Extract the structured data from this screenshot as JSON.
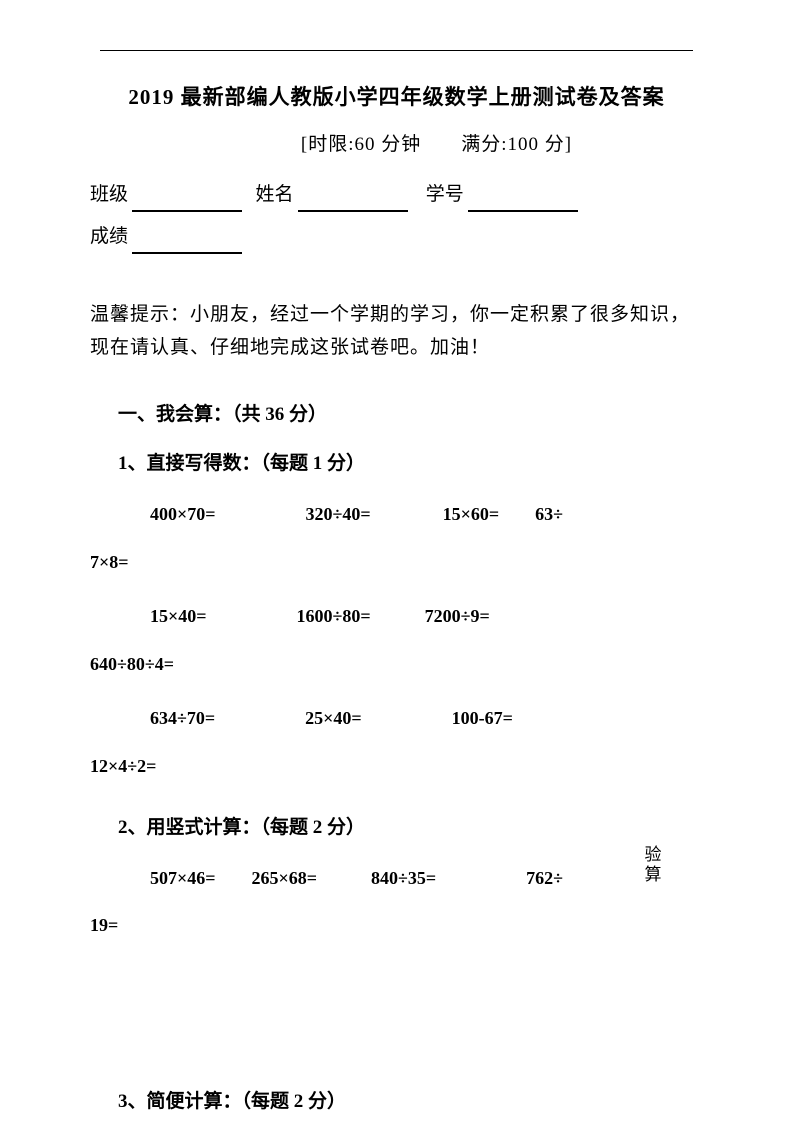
{
  "title": "2019 最新部编人教版小学四年级数学上册测试卷及答案",
  "subtitle": "[时限:60 分钟　　满分:100 分]",
  "info": {
    "class_label": "班级",
    "name_label": "姓名",
    "id_label": "学号",
    "score_label": "成绩"
  },
  "hint": "温馨提示：小朋友，经过一个学期的学习，你一定积累了很多知识，现在请认真、仔细地完成这张试卷吧。加油！",
  "section1": {
    "title": "一、我会算：（共 36 分）",
    "sub1": {
      "title": "1、直接写得数：（每题 1 分）",
      "row1": "400×70=　　　　　320÷40=　　　　15×60=　　63÷",
      "row1_wrap": "7×8=",
      "row2": "15×40=　　　　　1600÷80=　　　7200÷9=",
      "row2_wrap": "640÷80÷4=",
      "row3": "634÷70=　　　　　25×40=　　　　　100-67=",
      "row3_wrap": "12×4÷2="
    },
    "sub2": {
      "title": "2、用竖式计算：（每题 2 分）",
      "row1": "507×46=　　265×68=　　　840÷35=　　　　　762÷",
      "row1_wrap": "19="
    },
    "sub3": {
      "title": "3、简便计算：（每题 2 分）"
    }
  },
  "verify_label": "验算"
}
